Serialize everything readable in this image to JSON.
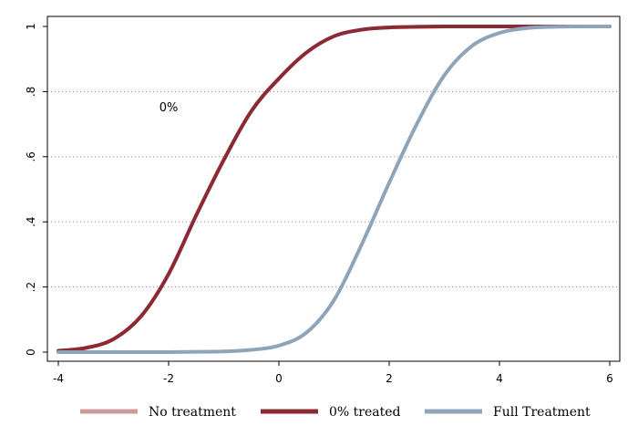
{
  "chart_data": {
    "type": "line",
    "title": "",
    "xlabel": "",
    "ylabel": "",
    "xlim": [
      -4,
      6
    ],
    "ylim": [
      0,
      1
    ],
    "x_ticks": [
      -4,
      -2,
      0,
      2,
      4,
      6
    ],
    "x_tick_labels": [
      "-4",
      "-2",
      "0",
      "2",
      "4",
      "6"
    ],
    "y_ticks": [
      0,
      0.2,
      0.4,
      0.6,
      0.8,
      1
    ],
    "y_tick_labels": [
      "0",
      ".2",
      ".4",
      ".6",
      ".8",
      "1"
    ],
    "grid": "horizontal dotted",
    "legend_position": "bottom",
    "annotations": [
      {
        "text": "0%",
        "x": -2,
        "y": 0.74
      }
    ],
    "series": [
      {
        "name": "No treatment",
        "color": "#c99a9a",
        "x": [
          -4,
          -3.5,
          -3,
          -2.5,
          -2,
          -1.5,
          -1,
          -0.5,
          0,
          0.5,
          1,
          1.5,
          2,
          2.5,
          3,
          3.5,
          4,
          4.5,
          5,
          5.5,
          6
        ],
        "y": [
          0.004,
          0.013,
          0.04,
          0.11,
          0.24,
          0.42,
          0.59,
          0.74,
          0.84,
          0.92,
          0.97,
          0.99,
          0.997,
          0.999,
          1,
          1,
          1,
          1,
          1,
          1,
          1
        ]
      },
      {
        "name": "0% treated",
        "color": "#8b2a35",
        "x": [
          -4,
          -3.5,
          -3,
          -2.5,
          -2,
          -1.5,
          -1,
          -0.5,
          0,
          0.5,
          1,
          1.5,
          2,
          2.5,
          3,
          3.5,
          4,
          4.5,
          5,
          5.5,
          6
        ],
        "y": [
          0.004,
          0.013,
          0.04,
          0.11,
          0.24,
          0.42,
          0.59,
          0.74,
          0.84,
          0.92,
          0.97,
          0.99,
          0.997,
          0.999,
          1,
          1,
          1,
          1,
          1,
          1,
          1
        ]
      },
      {
        "name": "Full Treatment",
        "color": "#8fa4b8",
        "x": [
          -4,
          -3.5,
          -3,
          -2.5,
          -2,
          -1.5,
          -1,
          -0.5,
          0,
          0.5,
          1,
          1.5,
          2,
          2.5,
          3,
          3.5,
          4,
          4.5,
          5,
          5.5,
          6
        ],
        "y": [
          0,
          0,
          0,
          0,
          0,
          0.001,
          0.002,
          0.007,
          0.02,
          0.06,
          0.16,
          0.33,
          0.52,
          0.7,
          0.85,
          0.94,
          0.98,
          0.995,
          0.999,
          1,
          1
        ]
      }
    ]
  }
}
